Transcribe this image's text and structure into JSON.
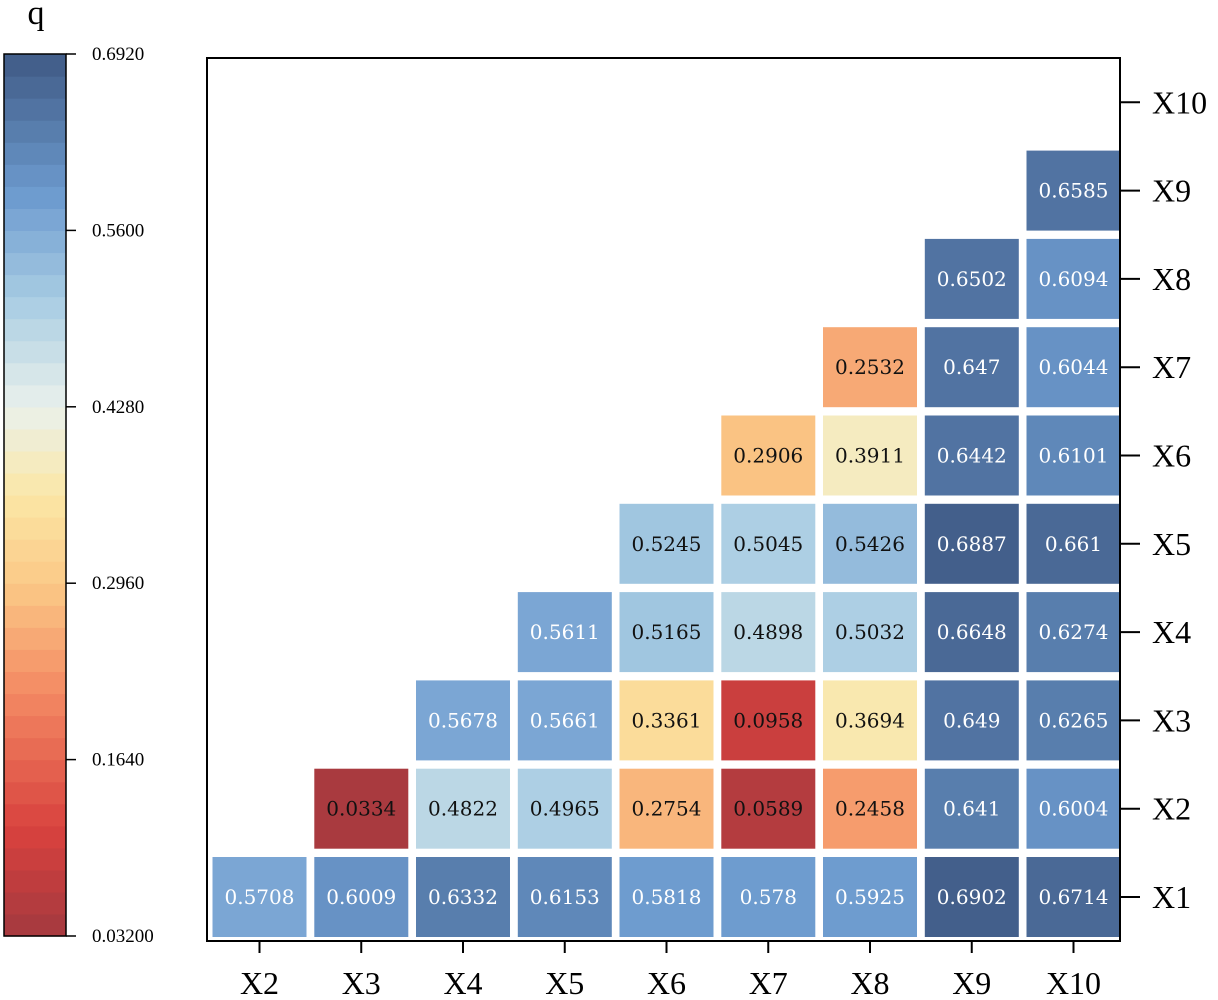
{
  "chart_data": {
    "type": "heatmap",
    "title": "",
    "x_categories": [
      "X2",
      "X3",
      "X4",
      "X5",
      "X6",
      "X7",
      "X8",
      "X9",
      "X10"
    ],
    "y_categories": [
      "X1",
      "X2",
      "X3",
      "X4",
      "X5",
      "X6",
      "X7",
      "X8",
      "X9",
      "X10"
    ],
    "cells": [
      {
        "row": "X1",
        "col": "X2",
        "value": 0.5708,
        "label": "0.5708"
      },
      {
        "row": "X1",
        "col": "X3",
        "value": 0.6009,
        "label": "0.6009"
      },
      {
        "row": "X1",
        "col": "X4",
        "value": 0.6332,
        "label": "0.6332"
      },
      {
        "row": "X1",
        "col": "X5",
        "value": 0.6153,
        "label": "0.6153"
      },
      {
        "row": "X1",
        "col": "X6",
        "value": 0.5818,
        "label": "0.5818"
      },
      {
        "row": "X1",
        "col": "X7",
        "value": 0.578,
        "label": "0.578"
      },
      {
        "row": "X1",
        "col": "X8",
        "value": 0.5925,
        "label": "0.5925"
      },
      {
        "row": "X1",
        "col": "X9",
        "value": 0.6902,
        "label": "0.6902"
      },
      {
        "row": "X1",
        "col": "X10",
        "value": 0.6714,
        "label": "0.6714"
      },
      {
        "row": "X2",
        "col": "X3",
        "value": 0.0334,
        "label": "0.0334"
      },
      {
        "row": "X2",
        "col": "X4",
        "value": 0.4822,
        "label": "0.4822"
      },
      {
        "row": "X2",
        "col": "X5",
        "value": 0.4965,
        "label": "0.4965"
      },
      {
        "row": "X2",
        "col": "X6",
        "value": 0.2754,
        "label": "0.2754"
      },
      {
        "row": "X2",
        "col": "X7",
        "value": 0.0589,
        "label": "0.0589"
      },
      {
        "row": "X2",
        "col": "X8",
        "value": 0.2458,
        "label": "0.2458"
      },
      {
        "row": "X2",
        "col": "X9",
        "value": 0.641,
        "label": "0.641"
      },
      {
        "row": "X2",
        "col": "X10",
        "value": 0.6004,
        "label": "0.6004"
      },
      {
        "row": "X3",
        "col": "X4",
        "value": 0.5678,
        "label": "0.5678"
      },
      {
        "row": "X3",
        "col": "X5",
        "value": 0.5661,
        "label": "0.5661"
      },
      {
        "row": "X3",
        "col": "X6",
        "value": 0.3361,
        "label": "0.3361"
      },
      {
        "row": "X3",
        "col": "X7",
        "value": 0.0958,
        "label": "0.0958"
      },
      {
        "row": "X3",
        "col": "X8",
        "value": 0.3694,
        "label": "0.3694"
      },
      {
        "row": "X3",
        "col": "X9",
        "value": 0.649,
        "label": "0.649"
      },
      {
        "row": "X3",
        "col": "X10",
        "value": 0.6265,
        "label": "0.6265"
      },
      {
        "row": "X4",
        "col": "X5",
        "value": 0.5611,
        "label": "0.5611"
      },
      {
        "row": "X4",
        "col": "X6",
        "value": 0.5165,
        "label": "0.5165"
      },
      {
        "row": "X4",
        "col": "X7",
        "value": 0.4898,
        "label": "0.4898"
      },
      {
        "row": "X4",
        "col": "X8",
        "value": 0.5032,
        "label": "0.5032"
      },
      {
        "row": "X4",
        "col": "X9",
        "value": 0.6648,
        "label": "0.6648"
      },
      {
        "row": "X4",
        "col": "X10",
        "value": 0.6274,
        "label": "0.6274"
      },
      {
        "row": "X5",
        "col": "X6",
        "value": 0.5245,
        "label": "0.5245"
      },
      {
        "row": "X5",
        "col": "X7",
        "value": 0.5045,
        "label": "0.5045"
      },
      {
        "row": "X5",
        "col": "X8",
        "value": 0.5426,
        "label": "0.5426"
      },
      {
        "row": "X5",
        "col": "X9",
        "value": 0.6887,
        "label": "0.6887"
      },
      {
        "row": "X5",
        "col": "X10",
        "value": 0.661,
        "label": "0.661"
      },
      {
        "row": "X6",
        "col": "X7",
        "value": 0.2906,
        "label": "0.2906"
      },
      {
        "row": "X6",
        "col": "X8",
        "value": 0.3911,
        "label": "0.3911"
      },
      {
        "row": "X6",
        "col": "X9",
        "value": 0.6442,
        "label": "0.6442"
      },
      {
        "row": "X6",
        "col": "X10",
        "value": 0.6101,
        "label": "0.6101"
      },
      {
        "row": "X7",
        "col": "X8",
        "value": 0.2532,
        "label": "0.2532"
      },
      {
        "row": "X7",
        "col": "X9",
        "value": 0.647,
        "label": "0.647"
      },
      {
        "row": "X7",
        "col": "X10",
        "value": 0.6044,
        "label": "0.6044"
      },
      {
        "row": "X8",
        "col": "X9",
        "value": 0.6502,
        "label": "0.6502"
      },
      {
        "row": "X8",
        "col": "X10",
        "value": 0.6094,
        "label": "0.6094"
      },
      {
        "row": "X9",
        "col": "X10",
        "value": 0.6585,
        "label": "0.6585"
      }
    ],
    "colorbar": {
      "title": "q",
      "min": 0.032,
      "max": 0.692,
      "ticks": [
        {
          "value": 0.692,
          "label": "0.6920"
        },
        {
          "value": 0.56,
          "label": "0.5600"
        },
        {
          "value": 0.428,
          "label": "0.4280"
        },
        {
          "value": 0.296,
          "label": "0.2960"
        },
        {
          "value": 0.164,
          "label": "0.1640"
        },
        {
          "value": 0.032,
          "label": "0.03200"
        }
      ],
      "steps": 40,
      "stops": [
        {
          "t": 0.0,
          "color": "#a3393f"
        },
        {
          "t": 0.12,
          "color": "#d8413e"
        },
        {
          "t": 0.28,
          "color": "#f48b64"
        },
        {
          "t": 0.4,
          "color": "#fbc987"
        },
        {
          "t": 0.5,
          "color": "#fbe7a6"
        },
        {
          "t": 0.6,
          "color": "#eaf1ec"
        },
        {
          "t": 0.72,
          "color": "#a9cde3"
        },
        {
          "t": 0.84,
          "color": "#6d9bcf"
        },
        {
          "t": 1.0,
          "color": "#3f5a85"
        }
      ]
    },
    "light_text_threshold": 0.55,
    "light_text_color": "#ffffff",
    "dark_text_color": "#111111",
    "grid": false
  }
}
